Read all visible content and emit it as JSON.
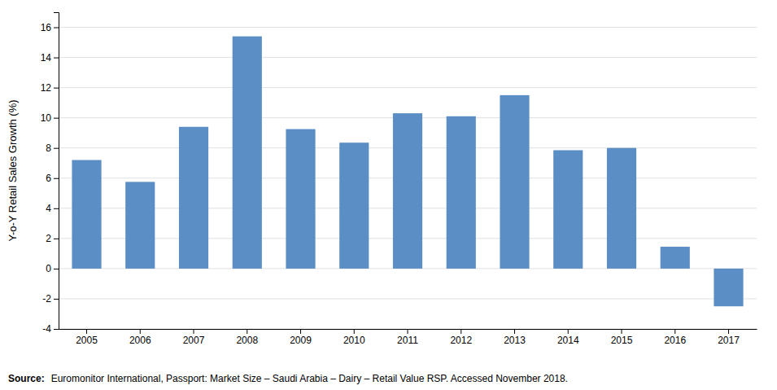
{
  "chart_data": {
    "type": "bar",
    "categories": [
      "2005",
      "2006",
      "2007",
      "2008",
      "2009",
      "2010",
      "2011",
      "2012",
      "2013",
      "2014",
      "2015",
      "2016",
      "2017"
    ],
    "values": [
      7.2,
      5.75,
      9.4,
      15.4,
      9.25,
      8.35,
      10.3,
      10.1,
      11.5,
      7.85,
      8.0,
      1.45,
      -2.5
    ],
    "color": "#5b8ec4",
    "ylabel": "Y-o-Y Retail Sales Growth (%)",
    "ylim": [
      -4,
      17
    ],
    "yticks": [
      -4,
      -2,
      0,
      2,
      4,
      6,
      8,
      10,
      12,
      14,
      16
    ],
    "grid": true,
    "annotations": [
      "Source:",
      "Euromonitor International, Passport: Market Size – Saudi Arabia – Dairy – Retail Value RSP. Accessed November 2018."
    ]
  }
}
